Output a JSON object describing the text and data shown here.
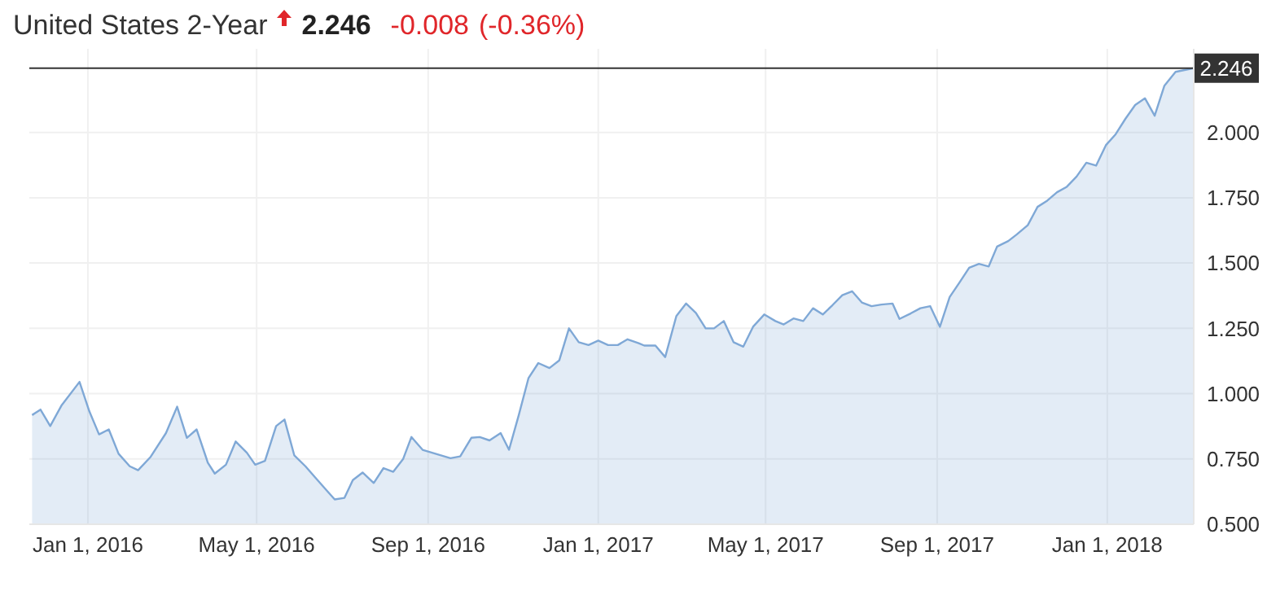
{
  "chart_data": {
    "type": "area",
    "title": "United States 2-Year",
    "annotations": [
      "2.246",
      "-0.008",
      "(-0.36%)"
    ],
    "x": [
      "2015-11-22",
      "2015-11-28",
      "2015-12-05",
      "2015-12-13",
      "2015-12-26",
      "2016-01-02",
      "2016-01-09",
      "2016-01-16",
      "2016-01-23",
      "2016-01-31",
      "2016-02-06",
      "2016-02-15",
      "2016-02-26",
      "2016-03-05",
      "2016-03-12",
      "2016-03-19",
      "2016-03-27",
      "2016-04-01",
      "2016-04-09",
      "2016-04-16",
      "2016-04-24",
      "2016-04-30",
      "2016-05-07",
      "2016-05-15",
      "2016-05-21",
      "2016-05-28",
      "2016-06-05",
      "2016-06-12",
      "2016-06-20",
      "2016-06-26",
      "2016-07-03",
      "2016-07-09",
      "2016-07-16",
      "2016-07-24",
      "2016-07-31",
      "2016-08-07",
      "2016-08-14",
      "2016-08-20",
      "2016-08-28",
      "2016-09-17",
      "2016-09-24",
      "2016-10-02",
      "2016-10-08",
      "2016-10-15",
      "2016-10-23",
      "2016-10-29",
      "2016-11-05",
      "2016-11-12",
      "2016-11-19",
      "2016-11-27",
      "2016-12-04",
      "2016-12-11",
      "2016-12-18",
      "2016-12-25",
      "2017-01-01",
      "2017-01-08",
      "2017-01-15",
      "2017-01-22",
      "2017-01-30",
      "2017-02-03",
      "2017-02-11",
      "2017-02-18",
      "2017-02-26",
      "2017-03-05",
      "2017-03-12",
      "2017-03-19",
      "2017-03-25",
      "2017-04-01",
      "2017-04-08",
      "2017-04-15",
      "2017-04-22",
      "2017-04-30",
      "2017-05-08",
      "2017-05-14",
      "2017-05-21",
      "2017-05-28",
      "2017-06-04",
      "2017-06-11",
      "2017-06-18",
      "2017-06-25",
      "2017-07-02",
      "2017-07-09",
      "2017-07-16",
      "2017-07-23",
      "2017-07-31",
      "2017-08-05",
      "2017-08-13",
      "2017-08-20",
      "2017-08-27",
      "2017-09-03",
      "2017-09-10",
      "2017-09-17",
      "2017-09-24",
      "2017-10-01",
      "2017-10-08",
      "2017-10-14",
      "2017-10-22",
      "2017-10-28",
      "2017-11-05",
      "2017-11-12",
      "2017-11-19",
      "2017-11-26",
      "2017-12-03",
      "2017-12-10",
      "2017-12-17",
      "2017-12-24",
      "2017-12-31",
      "2018-01-07",
      "2018-01-14",
      "2018-01-21",
      "2018-01-28",
      "2018-02-04",
      "2018-02-11",
      "2018-02-19",
      "2018-03-04"
    ],
    "series": [
      {
        "color": "#7fa8d6",
        "values": [
          0.918,
          0.939,
          0.876,
          0.954,
          1.045,
          0.933,
          0.844,
          0.863,
          0.77,
          0.722,
          0.707,
          0.758,
          0.849,
          0.95,
          0.831,
          0.863,
          0.736,
          0.694,
          0.728,
          0.817,
          0.774,
          0.728,
          0.743,
          0.876,
          0.901,
          0.764,
          0.722,
          0.679,
          0.631,
          0.595,
          0.601,
          0.669,
          0.698,
          0.658,
          0.715,
          0.701,
          0.749,
          0.834,
          0.785,
          0.753,
          0.76,
          0.831,
          0.834,
          0.821,
          0.849,
          0.785,
          0.918,
          1.06,
          1.117,
          1.098,
          1.127,
          1.25,
          1.197,
          1.186,
          1.203,
          1.186,
          1.186,
          1.208,
          1.193,
          1.184,
          1.184,
          1.14,
          1.297,
          1.345,
          1.309,
          1.25,
          1.25,
          1.278,
          1.197,
          1.18,
          1.256,
          1.303,
          1.278,
          1.265,
          1.288,
          1.278,
          1.327,
          1.303,
          1.339,
          1.377,
          1.392,
          1.349,
          1.335,
          1.341,
          1.345,
          1.286,
          1.307,
          1.327,
          1.335,
          1.256,
          1.37,
          1.425,
          1.482,
          1.497,
          1.487,
          1.563,
          1.584,
          1.609,
          1.645,
          1.715,
          1.739,
          1.771,
          1.792,
          1.831,
          1.884,
          1.873,
          1.951,
          1.993,
          2.052,
          2.105,
          2.131,
          2.064,
          2.179,
          2.232,
          2.246
        ]
      }
    ],
    "xlim": [
      "2015-11-20",
      "2018-03-04"
    ],
    "xticks": [
      {
        "value": "2016-01-01",
        "label": "Jan 1, 2016"
      },
      {
        "value": "2016-05-01",
        "label": "May 1, 2016"
      },
      {
        "value": "2016-09-01",
        "label": "Sep 1, 2016"
      },
      {
        "value": "2017-01-01",
        "label": "Jan 1, 2017"
      },
      {
        "value": "2017-05-01",
        "label": "May 1, 2017"
      },
      {
        "value": "2017-09-01",
        "label": "Sep 1, 2017"
      },
      {
        "value": "2018-01-01",
        "label": "Jan 1, 2018"
      }
    ],
    "ylim": [
      0.5,
      2.32
    ],
    "yticks": [
      {
        "value": 0.5,
        "label": "0.500"
      },
      {
        "value": 0.75,
        "label": "0.750"
      },
      {
        "value": 1.0,
        "label": "1.000"
      },
      {
        "value": 1.25,
        "label": "1.250"
      },
      {
        "value": 1.5,
        "label": "1.500"
      },
      {
        "value": 1.75,
        "label": "1.750"
      },
      {
        "value": 2.0,
        "label": "2.000"
      }
    ],
    "ref_lines": [
      {
        "axis": "y",
        "value": 2.246,
        "label": "2.246",
        "color": "#333333"
      }
    ],
    "grid": true
  }
}
